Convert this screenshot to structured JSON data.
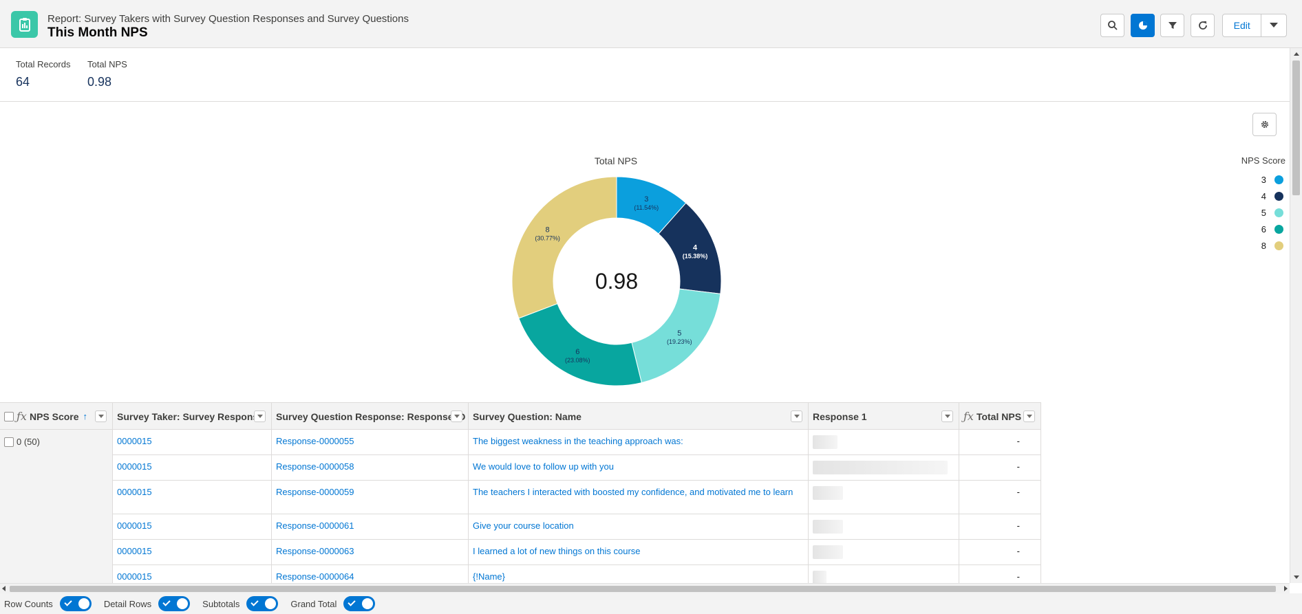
{
  "header": {
    "subtitle": "Report: Survey Takers with Survey Question Responses and Survey Questions",
    "title": "This Month NPS",
    "edit_label": "Edit"
  },
  "summary": [
    {
      "label": "Total Records",
      "value": "64"
    },
    {
      "label": "Total NPS",
      "value": "0.98"
    }
  ],
  "chart_data": {
    "type": "pie",
    "title": "Total NPS",
    "center_value": "0.98",
    "legend_title": "NPS Score",
    "legend_position": "right",
    "categories": [
      "3",
      "4",
      "5",
      "6",
      "8"
    ],
    "values": [
      3,
      4,
      5,
      6,
      8
    ],
    "percent_labels": [
      "(11.54%)",
      "(15.38%)",
      "(19.23%)",
      "(23.08%)",
      "(30.77%)"
    ],
    "colors": [
      "#0b9fdd",
      "#16325c",
      "#76ded9",
      "#08a69f",
      "#e2ce7d"
    ]
  },
  "table": {
    "columns": [
      {
        "label": "NPS Score",
        "sort": "↑"
      },
      {
        "label": "Survey Taker: Survey Response"
      },
      {
        "label": "Survey Question Response: Response ID"
      },
      {
        "label": "Survey Question: Name"
      },
      {
        "label": "Response 1"
      },
      {
        "label": "Total NPS"
      }
    ],
    "group_label": "0 (50)",
    "rows": [
      {
        "taker": "0000015",
        "response_id": "Response-0000055",
        "question": "The biggest weakness in the teaching approach was:",
        "total": "-"
      },
      {
        "taker": "0000015",
        "response_id": "Response-0000058",
        "question": "We would love to follow up with you",
        "total": "-"
      },
      {
        "taker": "0000015",
        "response_id": "Response-0000059",
        "question": "The teachers I interacted with boosted my confidence, and motivated me to learn",
        "total": "-"
      },
      {
        "taker": "0000015",
        "response_id": "Response-0000061",
        "question": "Give your course location",
        "total": "-"
      },
      {
        "taker": "0000015",
        "response_id": "Response-0000063",
        "question": "I learned a lot of new things on this course",
        "total": "-"
      },
      {
        "taker": "0000015",
        "response_id": "Response-0000064",
        "question": "{!Name}",
        "total": "-"
      }
    ]
  },
  "footer": {
    "toggles": [
      {
        "label": "Row Counts"
      },
      {
        "label": "Detail Rows"
      },
      {
        "label": "Subtotals"
      },
      {
        "label": "Grand Total"
      }
    ]
  }
}
